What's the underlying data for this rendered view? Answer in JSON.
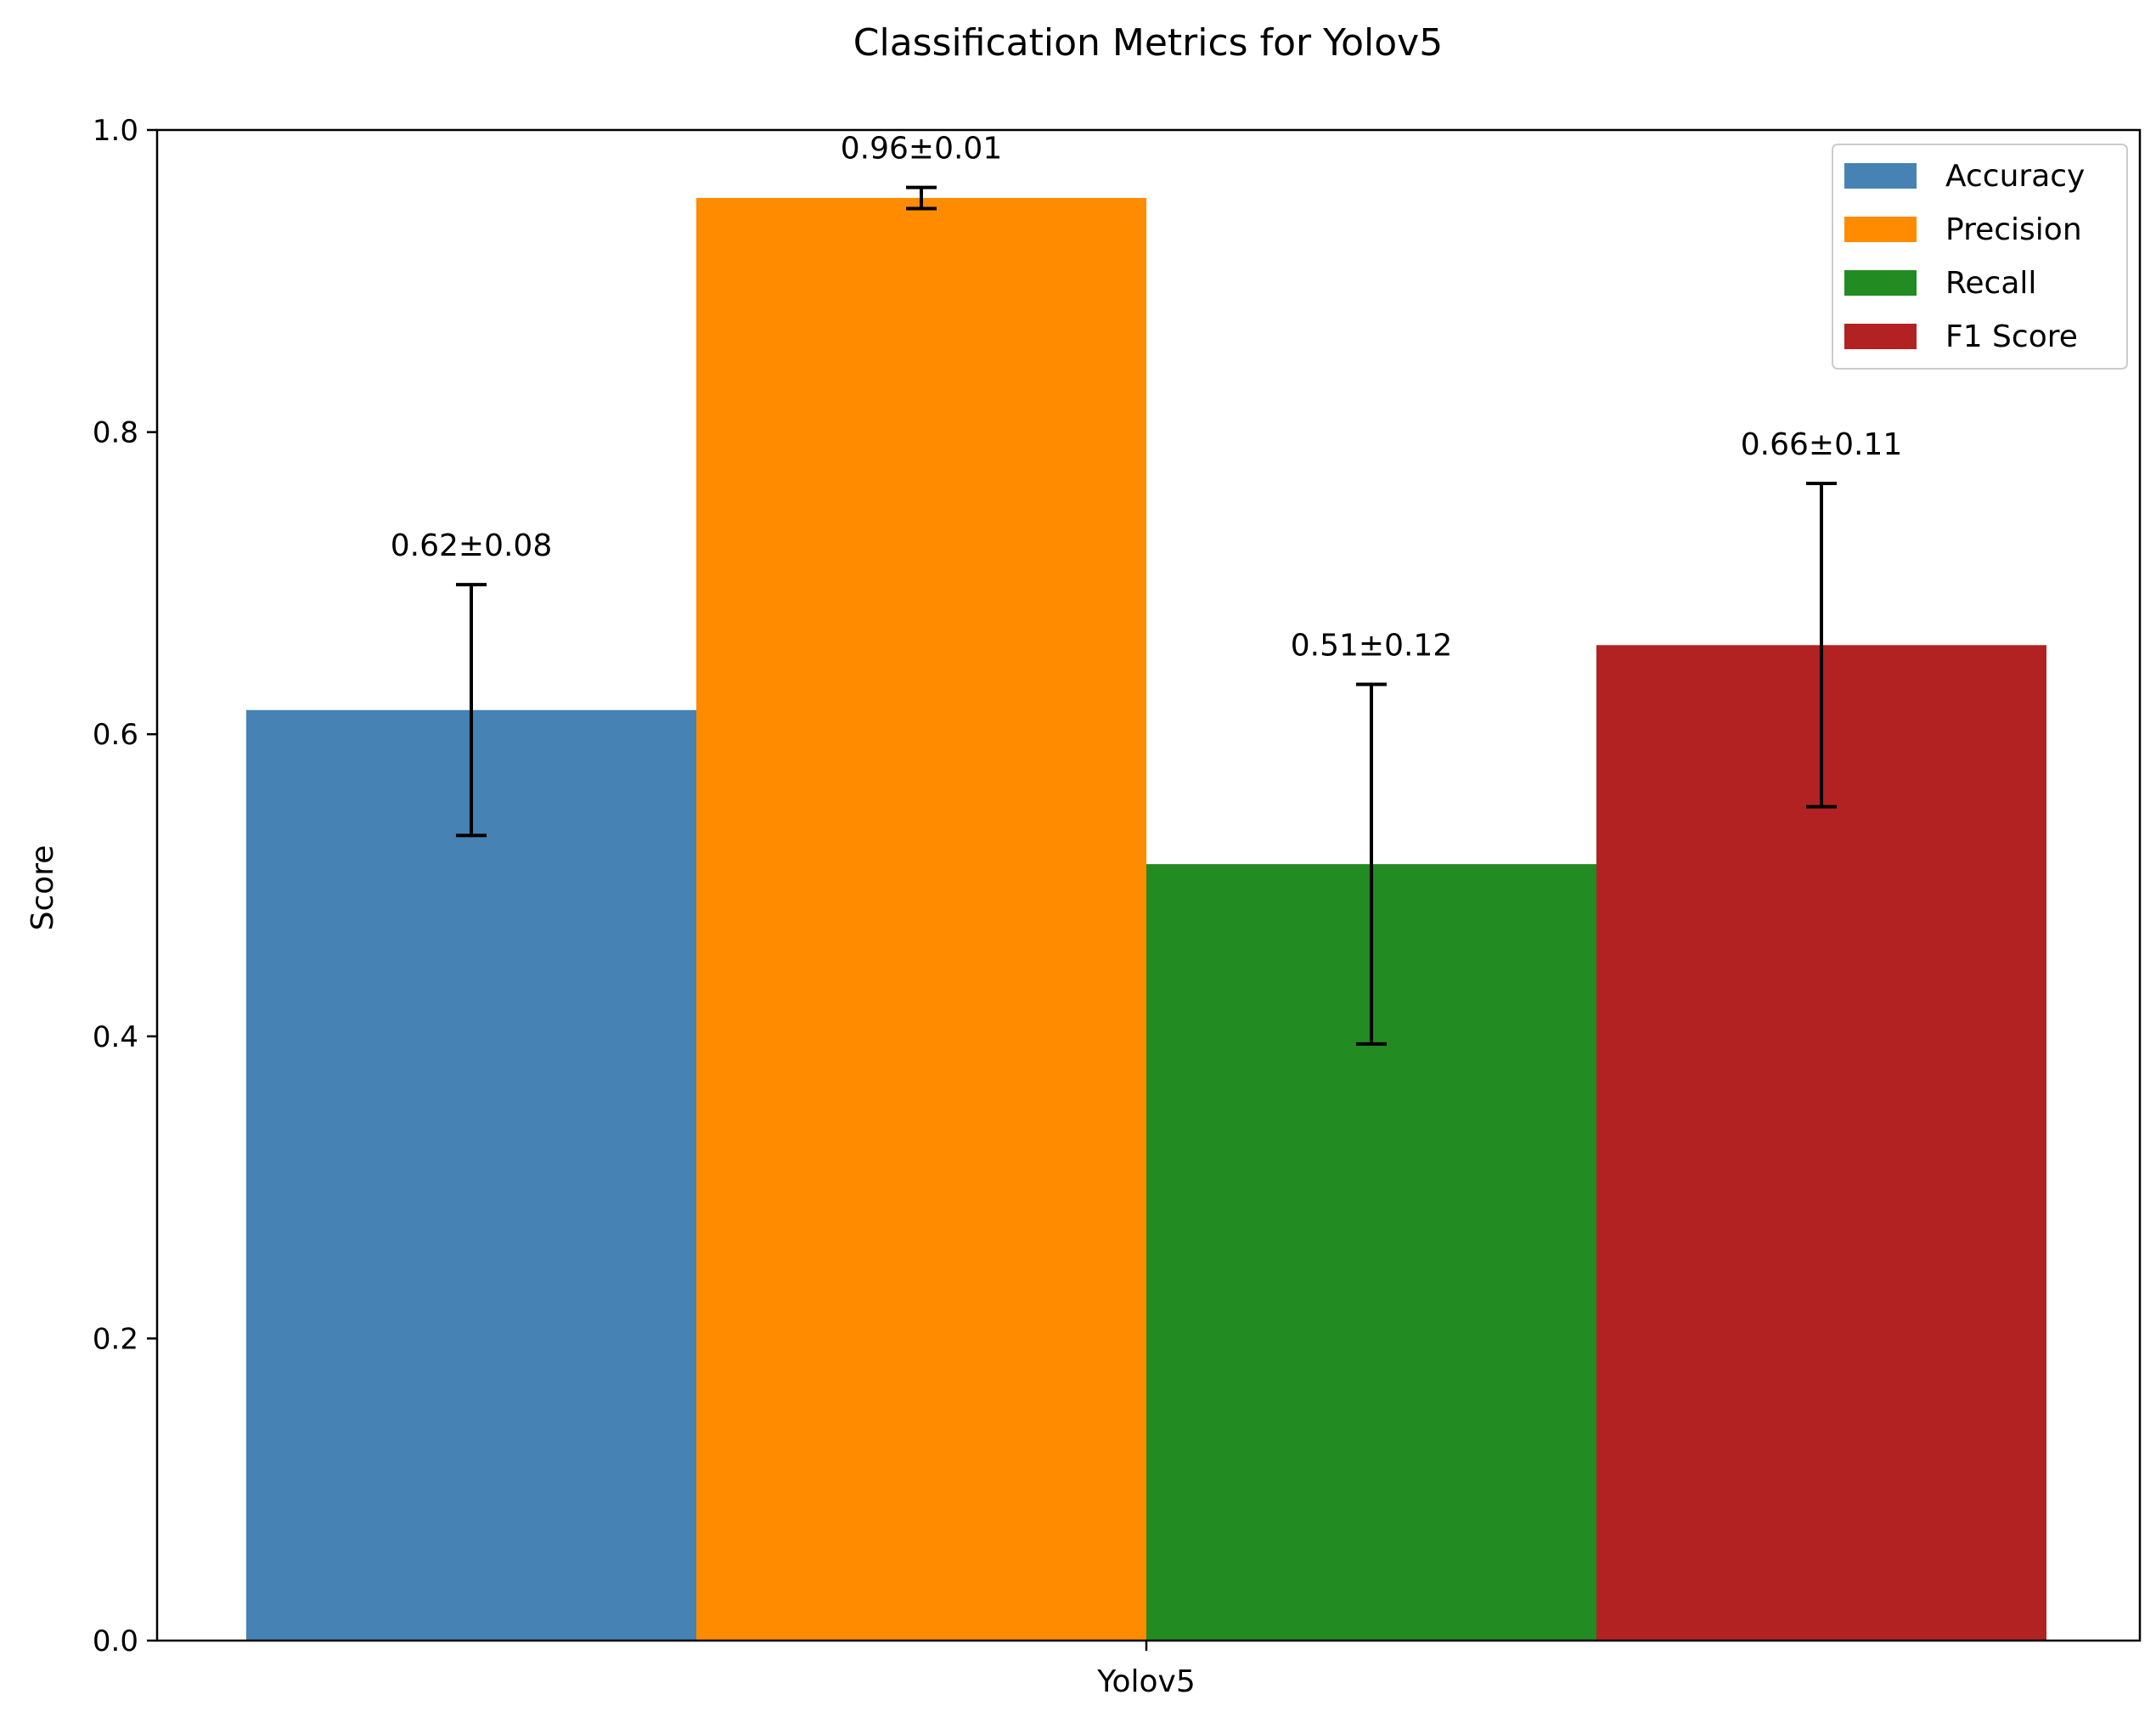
{
  "chart_data": {
    "type": "bar",
    "title": "Classification Metrics for Yolov5",
    "xlabel": "",
    "ylabel": "Score",
    "ylim": [
      0,
      1.0
    ],
    "yticks": [
      "0.0",
      "0.2",
      "0.4",
      "0.6",
      "0.8",
      "1.0"
    ],
    "categories": [
      "Yolov5"
    ],
    "grid": false,
    "legend_position": "top-right",
    "series": [
      {
        "name": "Accuracy",
        "color": "#4682b4",
        "value": 0.616,
        "error": 0.083,
        "label": "0.62±0.08"
      },
      {
        "name": "Precision",
        "color": "#ff8c00",
        "value": 0.955,
        "error": 0.007,
        "label": "0.96±0.01"
      },
      {
        "name": "Recall",
        "color": "#228b22",
        "value": 0.514,
        "error": 0.119,
        "label": "0.51±0.12"
      },
      {
        "name": "F1 Score",
        "color": "#b22222",
        "value": 0.659,
        "error": 0.107,
        "label": "0.66±0.11"
      }
    ]
  }
}
